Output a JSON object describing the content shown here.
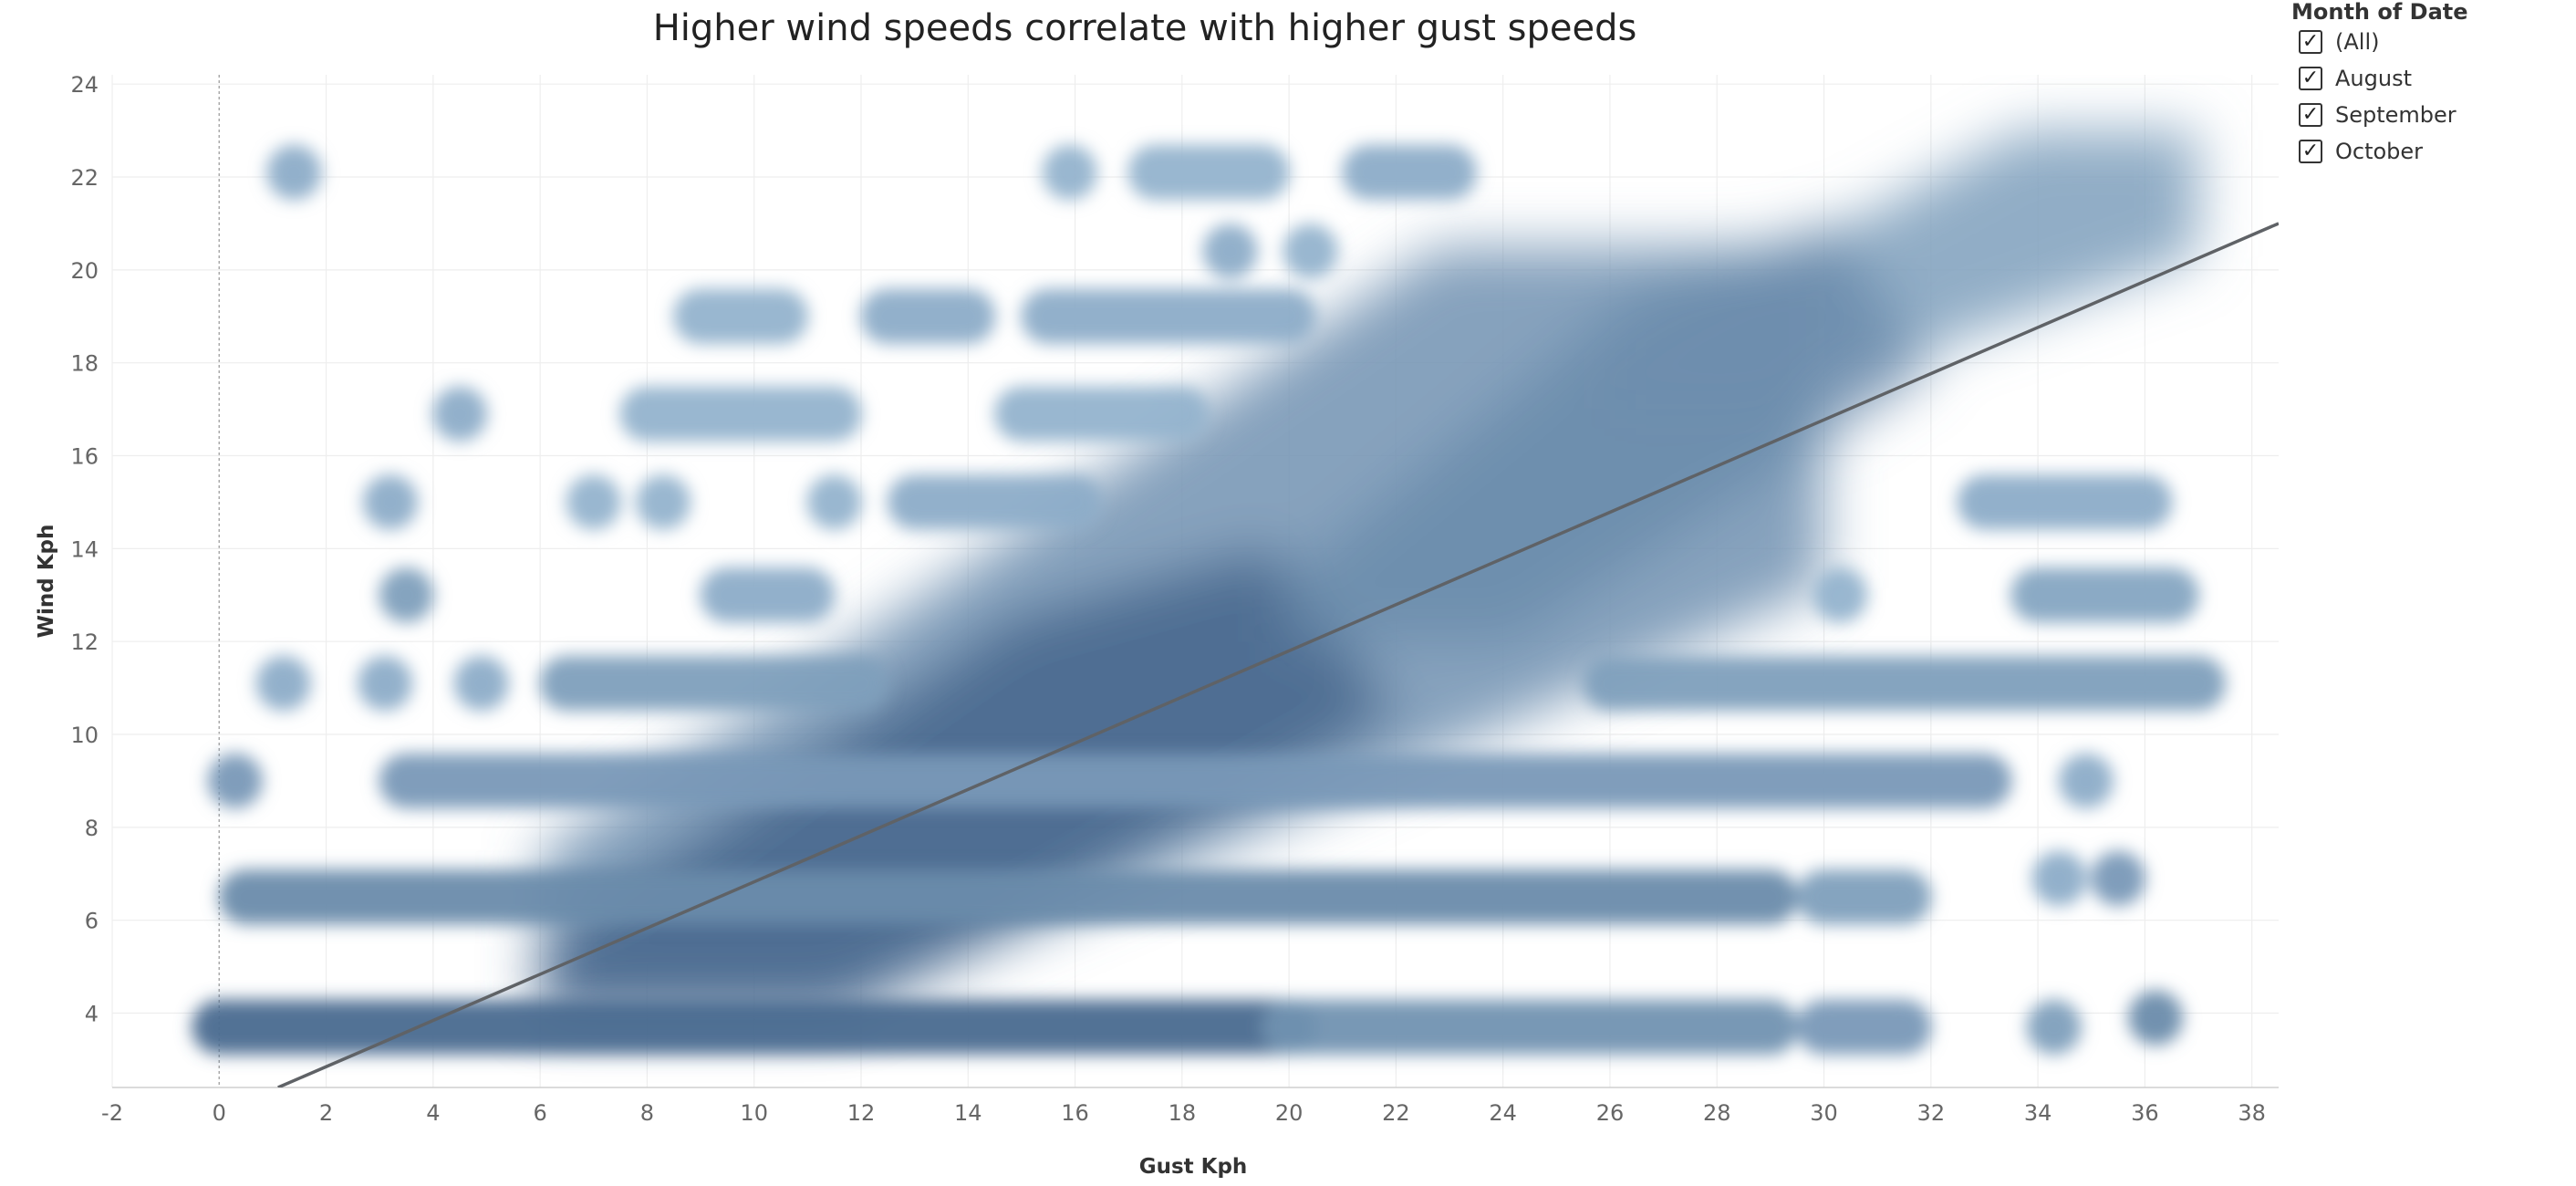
{
  "colors": {
    "density_light": "#b4d4ea",
    "density_dark": "#2e4f78",
    "trend_line": "#5f6266",
    "grid": "#eeeeee",
    "zero_line": "#a9a9a9"
  },
  "legend": {
    "title": "Month of Date",
    "items": [
      {
        "label": "(All)",
        "checked": true,
        "check_icon": "checkmark-icon"
      },
      {
        "label": "August",
        "checked": true,
        "check_icon": "checkmark-icon"
      },
      {
        "label": "September",
        "checked": true,
        "check_icon": "checkmark-icon"
      },
      {
        "label": "October",
        "checked": true,
        "check_icon": "checkmark-icon"
      }
    ]
  },
  "chart_data": {
    "type": "scatter",
    "subtype": "density",
    "title": "Higher wind speeds correlate with higher gust speeds",
    "xlabel": "Gust Kph",
    "ylabel": "Wind Kph",
    "xlim": [
      -2,
      38.5
    ],
    "ylim": [
      2.4,
      24.2
    ],
    "x_ticks": [
      "-2",
      "0",
      "2",
      "4",
      "6",
      "8",
      "10",
      "12",
      "14",
      "16",
      "18",
      "20",
      "22",
      "24",
      "26",
      "28",
      "30",
      "32",
      "34",
      "36",
      "38"
    ],
    "y_ticks": [
      "4",
      "6",
      "8",
      "10",
      "12",
      "14",
      "16",
      "18",
      "20",
      "22",
      "24"
    ],
    "grid": true,
    "legend_position": "top-right",
    "trend_line": {
      "x": [
        1.1,
        38.5
      ],
      "y": [
        2.4,
        21.0
      ]
    },
    "wind_levels": [
      3.7,
      6.5,
      9.0,
      11.1,
      13.0,
      15.0,
      16.9,
      19.0,
      20.4,
      22.1
    ],
    "density_bands": [
      {
        "y": 3.7,
        "x_from": 0,
        "x_to": 20,
        "intensity": 0.8
      },
      {
        "y": 3.7,
        "x_from": 20,
        "x_to": 29,
        "intensity": 0.5
      },
      {
        "y": 3.7,
        "x_from": 30,
        "x_to": 31.5,
        "intensity": 0.45
      },
      {
        "y": 6.5,
        "x_from": 0.5,
        "x_to": 29,
        "intensity": 0.55
      },
      {
        "y": 6.5,
        "x_from": 30,
        "x_to": 31.5,
        "intensity": 0.4
      },
      {
        "y": 9.0,
        "x_from": 3.5,
        "x_to": 33,
        "intensity": 0.45
      },
      {
        "y": 11.1,
        "x_from": 6.5,
        "x_to": 12,
        "intensity": 0.4
      },
      {
        "y": 11.1,
        "x_from": 26,
        "x_to": 37,
        "intensity": 0.4
      },
      {
        "y": 13.0,
        "x_from": 9.5,
        "x_to": 11,
        "intensity": 0.3
      },
      {
        "y": 13.0,
        "x_from": 34,
        "x_to": 36.5,
        "intensity": 0.35
      },
      {
        "y": 15.0,
        "x_from": 13,
        "x_to": 16,
        "intensity": 0.3
      },
      {
        "y": 15.0,
        "x_from": 33,
        "x_to": 36,
        "intensity": 0.3
      },
      {
        "y": 16.9,
        "x_from": 8,
        "x_to": 11.5,
        "intensity": 0.25
      },
      {
        "y": 16.9,
        "x_from": 15,
        "x_to": 18,
        "intensity": 0.25
      },
      {
        "y": 19.0,
        "x_from": 9,
        "x_to": 10.5,
        "intensity": 0.25
      },
      {
        "y": 19.0,
        "x_from": 12.5,
        "x_to": 14,
        "intensity": 0.3
      },
      {
        "y": 19.0,
        "x_from": 15.5,
        "x_to": 20,
        "intensity": 0.3
      },
      {
        "y": 22.1,
        "x_from": 17.5,
        "x_to": 19.5,
        "intensity": 0.25
      },
      {
        "y": 22.1,
        "x_from": 21.5,
        "x_to": 23,
        "intensity": 0.3
      }
    ],
    "density_spots": [
      {
        "x": 1.4,
        "y": 22.1,
        "intensity": 0.3
      },
      {
        "x": 15.9,
        "y": 22.1,
        "intensity": 0.25
      },
      {
        "x": 4.5,
        "y": 16.9,
        "intensity": 0.3
      },
      {
        "x": 3.2,
        "y": 15.0,
        "intensity": 0.3
      },
      {
        "x": 7.0,
        "y": 15.0,
        "intensity": 0.25
      },
      {
        "x": 8.3,
        "y": 15.0,
        "intensity": 0.25
      },
      {
        "x": 11.5,
        "y": 15.0,
        "intensity": 0.25
      },
      {
        "x": 3.5,
        "y": 13.0,
        "intensity": 0.4
      },
      {
        "x": 1.2,
        "y": 11.1,
        "intensity": 0.3
      },
      {
        "x": 3.1,
        "y": 11.1,
        "intensity": 0.3
      },
      {
        "x": 4.9,
        "y": 11.1,
        "intensity": 0.3
      },
      {
        "x": 0.3,
        "y": 9.0,
        "intensity": 0.45
      },
      {
        "x": 34.9,
        "y": 9.0,
        "intensity": 0.3
      },
      {
        "x": 30.3,
        "y": 13.0,
        "intensity": 0.25
      },
      {
        "x": 18.9,
        "y": 20.4,
        "intensity": 0.3
      },
      {
        "x": 20.4,
        "y": 20.4,
        "intensity": 0.25
      },
      {
        "x": 34.4,
        "y": 6.9,
        "intensity": 0.3
      },
      {
        "x": 35.5,
        "y": 6.9,
        "intensity": 0.45
      },
      {
        "x": 34.3,
        "y": 3.7,
        "intensity": 0.4
      },
      {
        "x": 36.2,
        "y": 3.9,
        "intensity": 0.55
      }
    ],
    "density_cloud": [
      {
        "x_from": 6,
        "x_to": 30,
        "y_from": 4.2,
        "y_to": 20.5,
        "intensity": 0.5
      },
      {
        "x_from": 26,
        "x_to": 37,
        "y_from": 17,
        "y_to": 23,
        "intensity": 0.4
      }
    ],
    "density_core": [
      {
        "x_from": 6,
        "x_to": 22,
        "y_from": 3.9,
        "y_to": 14,
        "intensity": 0.85
      },
      {
        "x_from": 20,
        "x_to": 32,
        "y_from": 12,
        "y_to": 21,
        "intensity": 0.55
      }
    ]
  }
}
